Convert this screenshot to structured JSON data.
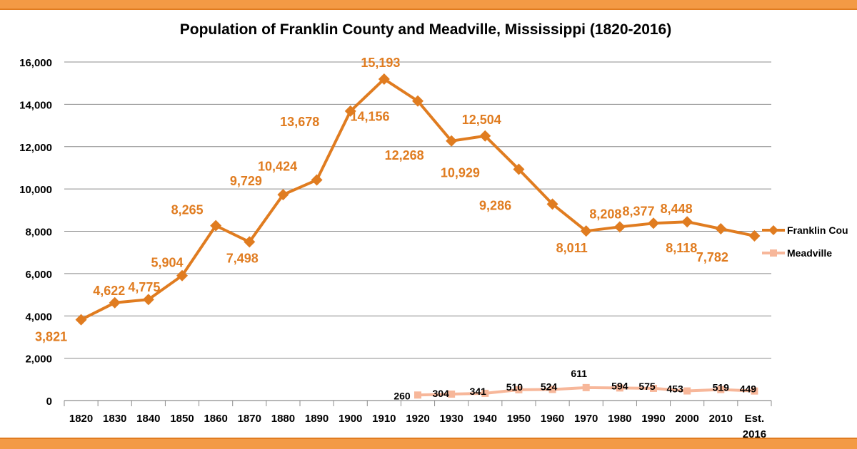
{
  "chart_data": {
    "type": "line",
    "title": "Population of Franklin County and Meadville, Mississippi (1820-2016)",
    "xlabel": "",
    "ylabel": "",
    "ylim": [
      0,
      16000
    ],
    "y_ticks": [
      "0",
      "2,000",
      "4,000",
      "6,000",
      "8,000",
      "10,000",
      "12,000",
      "14,000",
      "16,000"
    ],
    "grid": true,
    "legend_position": "right",
    "categories": [
      "1820",
      "1830",
      "1840",
      "1850",
      "1860",
      "1870",
      "1880",
      "1890",
      "1900",
      "1910",
      "1920",
      "1930",
      "1940",
      "1950",
      "1960",
      "1970",
      "1980",
      "1990",
      "2000",
      "2010",
      "Est.\n2016"
    ],
    "series": [
      {
        "name": "Franklin County",
        "legend_label": "Franklin Cou",
        "color": "#e07c20",
        "marker": "diamond",
        "values": [
          3821,
          4622,
          4775,
          5904,
          8265,
          7498,
          9729,
          10424,
          13678,
          15193,
          14156,
          12268,
          12504,
          10929,
          9286,
          8011,
          8208,
          8377,
          8448,
          8118,
          7782
        ],
        "labels": [
          "3,821",
          "4,622",
          "4,775",
          "5,904",
          "8,265",
          "7,498",
          "9,729",
          "10,424",
          "13,678",
          "15,193",
          "14,156",
          "12,268",
          "12,504",
          "10,929",
          "9,286",
          "8,011",
          "8,208",
          "8,377",
          "8,448",
          "8,118",
          "7,782"
        ]
      },
      {
        "name": "Meadville",
        "legend_label": "Meadville",
        "color": "#f7b79a",
        "marker": "square",
        "values": [
          null,
          null,
          null,
          null,
          null,
          null,
          null,
          null,
          null,
          null,
          260,
          304,
          341,
          510,
          524,
          611,
          594,
          575,
          453,
          519,
          449
        ],
        "labels": [
          null,
          null,
          null,
          null,
          null,
          null,
          null,
          null,
          null,
          null,
          "260",
          "304",
          "341",
          "510",
          "524",
          "611",
          "594",
          "575",
          "453",
          "519",
          "449"
        ]
      }
    ]
  }
}
